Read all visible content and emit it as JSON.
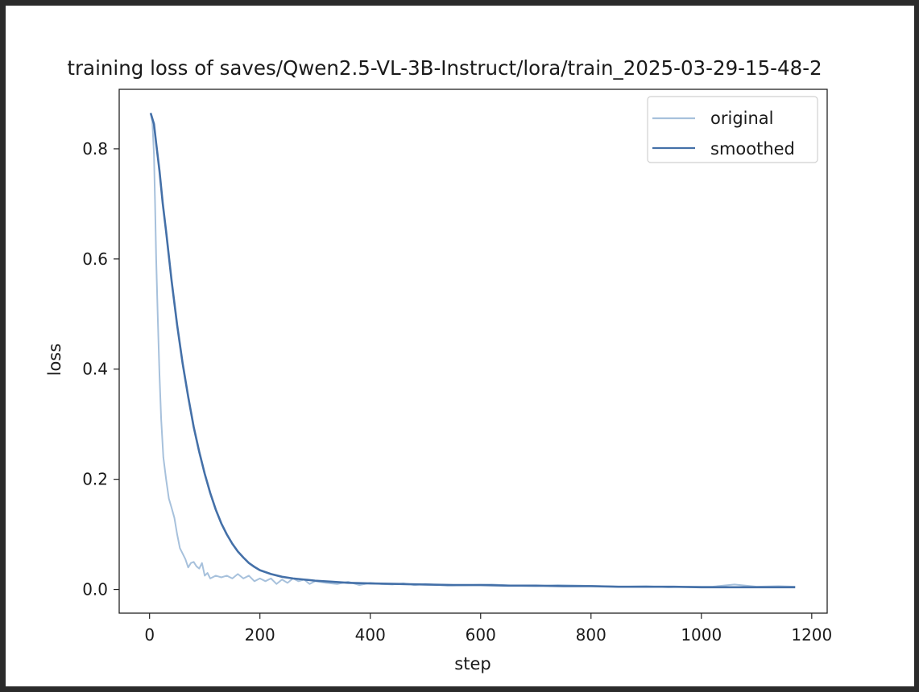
{
  "chart_data": {
    "type": "line",
    "title": "training loss of saves/Qwen2.5-VL-3B-Instruct/lora/train_2025-03-29-15-48-2",
    "xlabel": "step",
    "ylabel": "loss",
    "xlim": [
      -55,
      1228
    ],
    "ylim": [
      -0.043,
      0.908
    ],
    "xticks": [
      0,
      200,
      400,
      600,
      800,
      1000,
      1200
    ],
    "xtick_labels": [
      "0",
      "200",
      "400",
      "600",
      "800",
      "1000",
      "1200"
    ],
    "yticks": [
      0.0,
      0.2,
      0.4,
      0.6,
      0.8
    ],
    "ytick_labels": [
      "0.0",
      "0.2",
      "0.4",
      "0.6",
      "0.8"
    ],
    "grid": false,
    "legend_position": "upper right",
    "colors": {
      "original": "#a7c1dc",
      "smoothed": "#4470a8",
      "axes": "#222222",
      "frame": "#2b2b2b"
    },
    "series": [
      {
        "name": "original",
        "x": [
          2,
          5,
          8,
          10,
          12,
          15,
          18,
          21,
          25,
          30,
          35,
          40,
          45,
          50,
          55,
          60,
          65,
          70,
          75,
          80,
          85,
          90,
          95,
          100,
          105,
          110,
          120,
          130,
          140,
          150,
          160,
          170,
          180,
          190,
          200,
          210,
          220,
          230,
          240,
          250,
          260,
          270,
          280,
          290,
          300,
          320,
          340,
          360,
          380,
          400,
          420,
          440,
          460,
          480,
          500,
          540,
          580,
          620,
          660,
          700,
          740,
          780,
          820,
          860,
          900,
          940,
          980,
          1020,
          1060,
          1100,
          1140,
          1170
        ],
        "y": [
          0.865,
          0.85,
          0.79,
          0.7,
          0.6,
          0.49,
          0.39,
          0.31,
          0.24,
          0.2,
          0.165,
          0.148,
          0.13,
          0.1,
          0.075,
          0.065,
          0.055,
          0.04,
          0.048,
          0.05,
          0.042,
          0.038,
          0.048,
          0.025,
          0.03,
          0.02,
          0.025,
          0.022,
          0.025,
          0.02,
          0.028,
          0.02,
          0.025,
          0.015,
          0.02,
          0.015,
          0.02,
          0.01,
          0.018,
          0.012,
          0.02,
          0.015,
          0.018,
          0.01,
          0.015,
          0.012,
          0.01,
          0.014,
          0.008,
          0.012,
          0.01,
          0.009,
          0.011,
          0.008,
          0.01,
          0.007,
          0.008,
          0.009,
          0.007,
          0.006,
          0.008,
          0.007,
          0.006,
          0.005,
          0.006,
          0.004,
          0.005,
          0.005,
          0.009,
          0.005,
          0.006,
          0.005
        ]
      },
      {
        "name": "smoothed",
        "x": [
          2,
          8,
          12,
          18,
          24,
          30,
          40,
          50,
          60,
          70,
          80,
          90,
          100,
          110,
          120,
          130,
          140,
          150,
          160,
          170,
          180,
          190,
          200,
          220,
          240,
          260,
          280,
          300,
          330,
          360,
          400,
          450,
          500,
          550,
          600,
          650,
          700,
          750,
          800,
          850,
          900,
          950,
          1000,
          1050,
          1100,
          1140,
          1170
        ],
        "y": [
          0.865,
          0.845,
          0.81,
          0.76,
          0.7,
          0.65,
          0.56,
          0.48,
          0.41,
          0.35,
          0.295,
          0.25,
          0.21,
          0.175,
          0.145,
          0.12,
          0.1,
          0.083,
          0.069,
          0.058,
          0.048,
          0.041,
          0.035,
          0.028,
          0.023,
          0.02,
          0.018,
          0.016,
          0.014,
          0.012,
          0.011,
          0.01,
          0.009,
          0.008,
          0.008,
          0.007,
          0.007,
          0.006,
          0.006,
          0.005,
          0.005,
          0.005,
          0.004,
          0.004,
          0.004,
          0.004,
          0.004
        ]
      }
    ]
  }
}
